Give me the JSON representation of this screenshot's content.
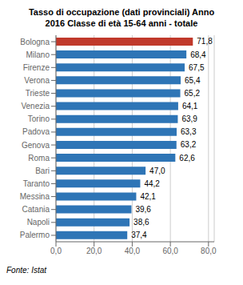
{
  "chart_data": {
    "type": "bar",
    "orientation": "horizontal",
    "title": "Tasso di occupazione (dati provinciali) Anno\n2016 Classe di età 15-64 anni - totale",
    "categories": [
      "Bologna",
      "Milano",
      "Firenze",
      "Verona",
      "Trieste",
      "Venezia",
      "Torino",
      "Padova",
      "Genova",
      "Roma",
      "Bari",
      "Taranto",
      "Messina",
      "Catania",
      "Napoli",
      "Palermo"
    ],
    "values": [
      71.8,
      68.4,
      67.5,
      65.4,
      65.2,
      64.1,
      63.9,
      63.3,
      63.2,
      62.6,
      47.0,
      44.2,
      42.1,
      39.6,
      38.6,
      37.4
    ],
    "value_labels": [
      "71,8",
      "68,4",
      "67,5",
      "65,4",
      "65,2",
      "64,1",
      "63,9",
      "63,3",
      "63,2",
      "62,6",
      "47,0",
      "44,2",
      "42,1",
      "39,6",
      "38,6",
      "37,4"
    ],
    "data_labels": true,
    "colors": [
      "#c0392b",
      "#2e75b6",
      "#2e75b6",
      "#2e75b6",
      "#2e75b6",
      "#2e75b6",
      "#2e75b6",
      "#2e75b6",
      "#2e75b6",
      "#2e75b6",
      "#2e75b6",
      "#2e75b6",
      "#2e75b6",
      "#2e75b6",
      "#2e75b6",
      "#2e75b6"
    ],
    "xlim": [
      0,
      83
    ],
    "xticks": [
      {
        "value": 0,
        "label": "0,0"
      },
      {
        "value": 20.0,
        "label": "20,0"
      },
      {
        "value": 40.0,
        "label": "40,0"
      },
      {
        "value": 60.0,
        "label": "60,0"
      },
      {
        "value": 80.0,
        "label": "80,0"
      }
    ],
    "grid": true,
    "annotations": [
      "Fonte: Istat"
    ]
  }
}
